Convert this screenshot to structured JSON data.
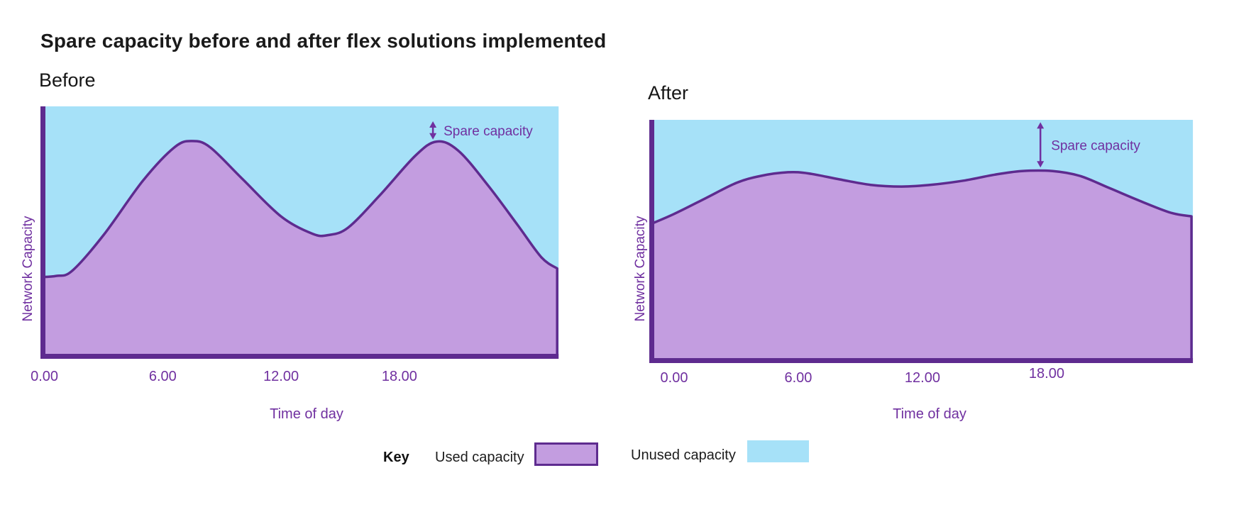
{
  "page": {
    "title": "Spare capacity before and after flex solutions implemented"
  },
  "colors": {
    "axis": "#5e2b8f",
    "curve": "#5e2b8f",
    "used_fill": "#c39de0",
    "unused_fill": "#a6e1f8",
    "purple_text": "#7030a0",
    "title_text": "#1a1a1a"
  },
  "key": {
    "label": "Key",
    "items": [
      {
        "label": "Used capacity",
        "swatch_color": "#c39de0",
        "swatch_border": "#5e2b8f"
      },
      {
        "label": "Unused capacity",
        "swatch_color": "#a6e1f8",
        "swatch_border": "none"
      }
    ]
  },
  "chart_data": [
    {
      "id": "before",
      "type": "area",
      "title": "Before",
      "xlabel": "Time of day",
      "ylabel": "Network Capacity",
      "xlim": [
        -0.2,
        26.1
      ],
      "ylim": [
        0,
        100
      ],
      "grid": false,
      "x_ticks": [
        {
          "h": 0,
          "label": "0.00"
        },
        {
          "h": 6,
          "label": "6.00"
        },
        {
          "h": 12,
          "label": "12.00"
        },
        {
          "h": 18,
          "label": "18.00"
        }
      ],
      "annotation": {
        "label": "Spare capacity",
        "x_hour": 19.7,
        "from_pct": 94,
        "to_pct": 86.6
      },
      "series": [
        {
          "name": "Used capacity",
          "unit": "percent of total network capacity",
          "points": [
            [
              -0.2,
              31
            ],
            [
              0.6,
              31.5
            ],
            [
              1.4,
              33.5
            ],
            [
              3,
              48
            ],
            [
              5,
              70
            ],
            [
              6.6,
              83.5
            ],
            [
              7.5,
              86
            ],
            [
              8.4,
              83.5
            ],
            [
              10,
              71
            ],
            [
              12,
              55.5
            ],
            [
              13.6,
              48.5
            ],
            [
              14.4,
              48
            ],
            [
              15.4,
              51
            ],
            [
              17,
              64
            ],
            [
              18.8,
              80
            ],
            [
              19.9,
              85.8
            ],
            [
              21,
              82
            ],
            [
              22.5,
              68
            ],
            [
              24,
              52
            ],
            [
              25.2,
              39
            ],
            [
              26.0,
              34.5
            ]
          ]
        },
        {
          "name": "Unused capacity",
          "derived": "100 minus used capacity (area above curve up to total capacity)"
        }
      ]
    },
    {
      "id": "after",
      "type": "area",
      "title": "After",
      "xlabel": "Time of day",
      "ylabel": "Network Capacity",
      "xlim": [
        -1.2,
        25.1
      ],
      "ylim": [
        0,
        100
      ],
      "grid": false,
      "x_ticks": [
        {
          "h": 0,
          "label": "0.00"
        },
        {
          "h": 6,
          "label": "6.00"
        },
        {
          "h": 12,
          "label": "12.00"
        },
        {
          "h": 18,
          "label": "18.00",
          "dy": -6
        }
      ],
      "annotation": {
        "label": "Spare capacity",
        "x_hour": 17.7,
        "from_pct": 99,
        "to_pct": 80
      },
      "series": [
        {
          "name": "Used capacity",
          "unit": "percent of total network capacity",
          "points": [
            [
              -1.2,
              56
            ],
            [
              0,
              60.5
            ],
            [
              1.5,
              67
            ],
            [
              3,
              73.5
            ],
            [
              4.2,
              76.5
            ],
            [
              5.5,
              78
            ],
            [
              6.5,
              77.5
            ],
            [
              8,
              75
            ],
            [
              9.5,
              72.7
            ],
            [
              11,
              72
            ],
            [
              12.5,
              72.8
            ],
            [
              14,
              74.5
            ],
            [
              15.5,
              77
            ],
            [
              16.8,
              78.5
            ],
            [
              18.3,
              78.5
            ],
            [
              19.6,
              76.5
            ],
            [
              21,
              71.5
            ],
            [
              22.5,
              66
            ],
            [
              24,
              61
            ],
            [
              25.0,
              59.5
            ]
          ]
        },
        {
          "name": "Unused capacity",
          "derived": "100 minus used capacity (area above curve up to total capacity)"
        }
      ]
    }
  ]
}
